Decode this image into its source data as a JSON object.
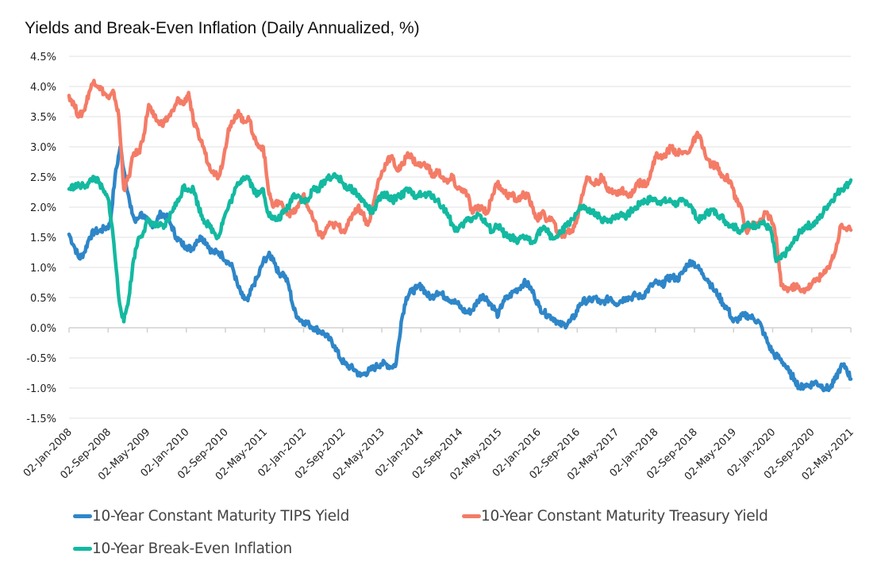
{
  "chart_data": {
    "type": "line",
    "title": "Yields and Break-Even Inflation (Daily Annualized, %)",
    "xlabel": "",
    "ylabel": "",
    "ylim": [
      -1.5,
      4.5
    ],
    "ytick_step": 0.5,
    "ytick_labels": [
      "4.5%",
      "4.0%",
      "3.5%",
      "3.0%",
      "2.5%",
      "2.0%",
      "1.5%",
      "1.0%",
      "0.5%",
      "0.0%",
      "-0.5%",
      "-1.0%",
      "-1.5%"
    ],
    "x_start": "2008-01",
    "x_end": "2021-05",
    "x_tick_labels": [
      "02-Jan-2008",
      "02-Sep-2008",
      "02-May-2009",
      "02-Jan-2010",
      "02-Sep-2010",
      "02-May-2011",
      "02-Jan-2012",
      "02-Sep-2012",
      "02-May-2013",
      "02-Jan-2014",
      "02-Sep-2014",
      "02-May-2015",
      "02-Jan-2016",
      "02-Sep-2016",
      "02-May-2017",
      "02-Jan-2018",
      "02-Sep-2018",
      "02-May-2019",
      "02-Jan-2020",
      "02-Sep-2020",
      "02-May-2021"
    ],
    "grid": true,
    "legend_position": "bottom",
    "x_resolution": "monthly (approximate readings of daily series)",
    "series": [
      {
        "name": "10-Year Constant Maturity TIPS Yield",
        "color": "#2E86C8",
        "values": [
          1.55,
          1.35,
          1.15,
          1.25,
          1.5,
          1.6,
          1.6,
          1.65,
          1.7,
          2.5,
          3.0,
          2.5,
          2.0,
          1.75,
          1.9,
          1.8,
          1.7,
          1.75,
          1.9,
          1.85,
          1.7,
          1.5,
          1.4,
          1.35,
          1.3,
          1.45,
          1.5,
          1.4,
          1.25,
          1.25,
          1.2,
          1.1,
          1.0,
          0.7,
          0.5,
          0.45,
          0.7,
          0.85,
          1.1,
          1.2,
          1.15,
          0.9,
          0.9,
          0.7,
          0.3,
          0.15,
          0.1,
          0.05,
          0.0,
          -0.05,
          -0.1,
          -0.2,
          -0.3,
          -0.5,
          -0.6,
          -0.65,
          -0.7,
          -0.8,
          -0.75,
          -0.7,
          -0.65,
          -0.6,
          -0.6,
          -0.65,
          -0.6,
          0.1,
          0.5,
          0.6,
          0.65,
          0.7,
          0.55,
          0.5,
          0.6,
          0.55,
          0.5,
          0.45,
          0.4,
          0.3,
          0.25,
          0.3,
          0.45,
          0.55,
          0.45,
          0.35,
          0.2,
          0.45,
          0.5,
          0.6,
          0.65,
          0.75,
          0.7,
          0.55,
          0.35,
          0.25,
          0.2,
          0.15,
          0.05,
          0.05,
          0.1,
          0.2,
          0.4,
          0.45,
          0.45,
          0.5,
          0.4,
          0.45,
          0.5,
          0.4,
          0.45,
          0.5,
          0.5,
          0.55,
          0.5,
          0.6,
          0.7,
          0.75,
          0.7,
          0.8,
          0.85,
          0.8,
          0.9,
          1.05,
          1.1,
          1.0,
          0.9,
          0.8,
          0.65,
          0.55,
          0.4,
          0.3,
          0.1,
          0.15,
          0.2,
          0.2,
          0.15,
          0.1,
          -0.1,
          -0.3,
          -0.45,
          -0.5,
          -0.6,
          -0.75,
          -0.85,
          -1.0,
          -0.95,
          -0.95,
          -0.9,
          -0.95,
          -1.0,
          -1.0,
          -0.85,
          -0.65,
          -0.65,
          -0.85
        ]
      },
      {
        "name": "10-Year Constant Maturity Treasury Yield",
        "color": "#F47C67",
        "values": [
          3.85,
          3.7,
          3.5,
          3.6,
          3.9,
          4.1,
          4.0,
          3.9,
          3.8,
          3.9,
          3.5,
          2.3,
          2.5,
          2.9,
          2.9,
          3.2,
          3.7,
          3.5,
          3.4,
          3.4,
          3.5,
          3.6,
          3.8,
          3.7,
          3.9,
          3.4,
          3.2,
          3.0,
          2.7,
          2.6,
          2.5,
          2.8,
          3.3,
          3.4,
          3.6,
          3.4,
          3.5,
          3.2,
          3.0,
          3.0,
          2.3,
          2.0,
          2.1,
          2.0,
          1.9,
          1.9,
          2.0,
          2.2,
          2.0,
          1.8,
          1.6,
          1.5,
          1.7,
          1.7,
          1.7,
          1.6,
          1.7,
          1.9,
          2.0,
          1.9,
          1.7,
          2.0,
          2.4,
          2.6,
          2.8,
          2.8,
          2.6,
          2.7,
          2.9,
          2.8,
          2.7,
          2.7,
          2.7,
          2.5,
          2.6,
          2.5,
          2.4,
          2.5,
          2.3,
          2.3,
          2.2,
          1.9,
          2.0,
          2.0,
          1.9,
          2.2,
          2.4,
          2.3,
          2.2,
          2.2,
          2.1,
          2.2,
          2.2,
          2.0,
          1.8,
          1.9,
          1.8,
          1.8,
          1.6,
          1.5,
          1.6,
          1.6,
          1.8,
          2.2,
          2.5,
          2.4,
          2.4,
          2.5,
          2.3,
          2.3,
          2.2,
          2.3,
          2.2,
          2.2,
          2.4,
          2.4,
          2.4,
          2.6,
          2.9,
          2.8,
          2.9,
          3.0,
          2.9,
          2.9,
          2.9,
          3.0,
          3.2,
          3.1,
          2.8,
          2.7,
          2.7,
          2.5,
          2.5,
          2.4,
          2.1,
          2.0,
          1.6,
          1.7,
          1.7,
          1.8,
          1.9,
          1.8,
          1.5,
          0.7,
          0.65,
          0.65,
          0.7,
          0.6,
          0.65,
          0.7,
          0.8,
          0.85,
          0.93,
          1.1,
          1.3,
          1.7,
          1.65,
          1.62
        ]
      },
      {
        "name": "10-Year Break-Even Inflation",
        "color": "#13B9A0",
        "values": [
          2.3,
          2.35,
          2.35,
          2.35,
          2.4,
          2.5,
          2.4,
          2.25,
          2.1,
          1.4,
          0.5,
          0.1,
          0.5,
          1.15,
          1.5,
          1.6,
          1.8,
          1.7,
          1.7,
          1.65,
          1.8,
          2.0,
          2.1,
          2.35,
          2.3,
          2.3,
          2.0,
          1.8,
          1.7,
          1.6,
          1.5,
          1.8,
          2.0,
          2.2,
          2.4,
          2.5,
          2.5,
          2.3,
          2.2,
          2.3,
          1.9,
          1.8,
          1.8,
          1.9,
          2.0,
          2.2,
          2.2,
          2.1,
          2.1,
          2.3,
          2.3,
          2.4,
          2.5,
          2.5,
          2.5,
          2.4,
          2.3,
          2.3,
          2.2,
          2.1,
          2.0,
          1.9,
          2.1,
          2.2,
          2.2,
          2.1,
          2.2,
          2.2,
          2.3,
          2.2,
          2.2,
          2.2,
          2.2,
          2.2,
          2.1,
          2.0,
          1.9,
          1.7,
          1.6,
          1.7,
          1.8,
          1.8,
          1.9,
          1.8,
          1.7,
          1.6,
          1.7,
          1.6,
          1.5,
          1.5,
          1.4,
          1.5,
          1.5,
          1.4,
          1.55,
          1.65,
          1.6,
          1.5,
          1.5,
          1.6,
          1.7,
          1.8,
          1.9,
          2.0,
          1.95,
          1.9,
          1.9,
          1.75,
          1.8,
          1.8,
          1.85,
          1.9,
          1.85,
          1.95,
          2.0,
          2.1,
          2.1,
          2.15,
          2.1,
          2.1,
          2.1,
          2.1,
          2.05,
          2.1,
          2.1,
          2.0,
          1.8,
          1.8,
          1.9,
          1.95,
          1.9,
          1.85,
          1.75,
          1.7,
          1.65,
          1.6,
          1.7,
          1.7,
          1.7,
          1.75,
          1.7,
          1.6,
          1.1,
          1.15,
          1.25,
          1.35,
          1.5,
          1.6,
          1.7,
          1.7,
          1.75,
          1.85,
          2.0,
          2.1,
          2.2,
          2.3,
          2.35,
          2.45
        ]
      }
    ]
  },
  "legend": {
    "items": [
      {
        "label": "10-Year Constant Maturity TIPS Yield",
        "color": "#2E86C8"
      },
      {
        "label": "10-Year Constant Maturity Treasury Yield",
        "color": "#F47C67"
      },
      {
        "label": "10-Year Break-Even Inflation",
        "color": "#13B9A0"
      }
    ]
  }
}
